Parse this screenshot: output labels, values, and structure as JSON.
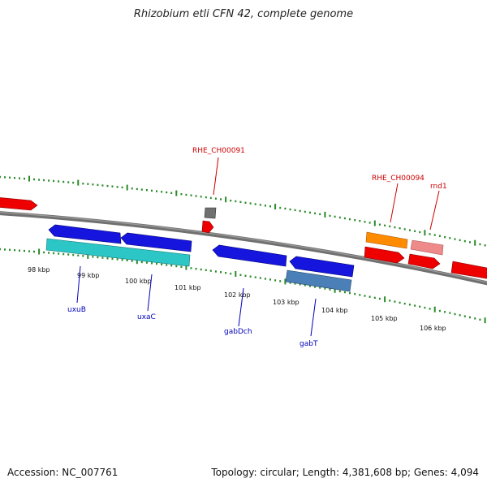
{
  "header": {
    "title": "Rhizobium etli CFN 42, complete genome"
  },
  "footer": {
    "accession": "Accession: NC_007761",
    "summary": "Topology: circular; Length: 4,381,608 bp; Genes: 4,094"
  },
  "map": {
    "axis_labels": [
      "98 kbp",
      "99 kbp",
      "100 kbp",
      "101 kbp",
      "102 kbp",
      "103 kbp",
      "104 kbp",
      "105 kbp",
      "106 kbp"
    ],
    "genes_forward": [
      "RHE_CH00091",
      "RHE_CH00094",
      "rnd1"
    ],
    "genes_reverse": [
      "uxuB",
      "uxaC",
      "gabDch",
      "gabT"
    ]
  },
  "colors": {
    "forward_cds": "#ee0000",
    "reverse_cds": "#1515dd",
    "backbone": "#808080",
    "tick": "#2a8a2a",
    "label_forward": "#cc0000",
    "label_reverse": "#0000bb",
    "orange_feature": "#ff8c00",
    "pink_feature": "#ee8a8a",
    "cyan_feature": "#2cc6c6",
    "steel_feature": "#4a7fb8",
    "gray_feature": "#707070"
  }
}
